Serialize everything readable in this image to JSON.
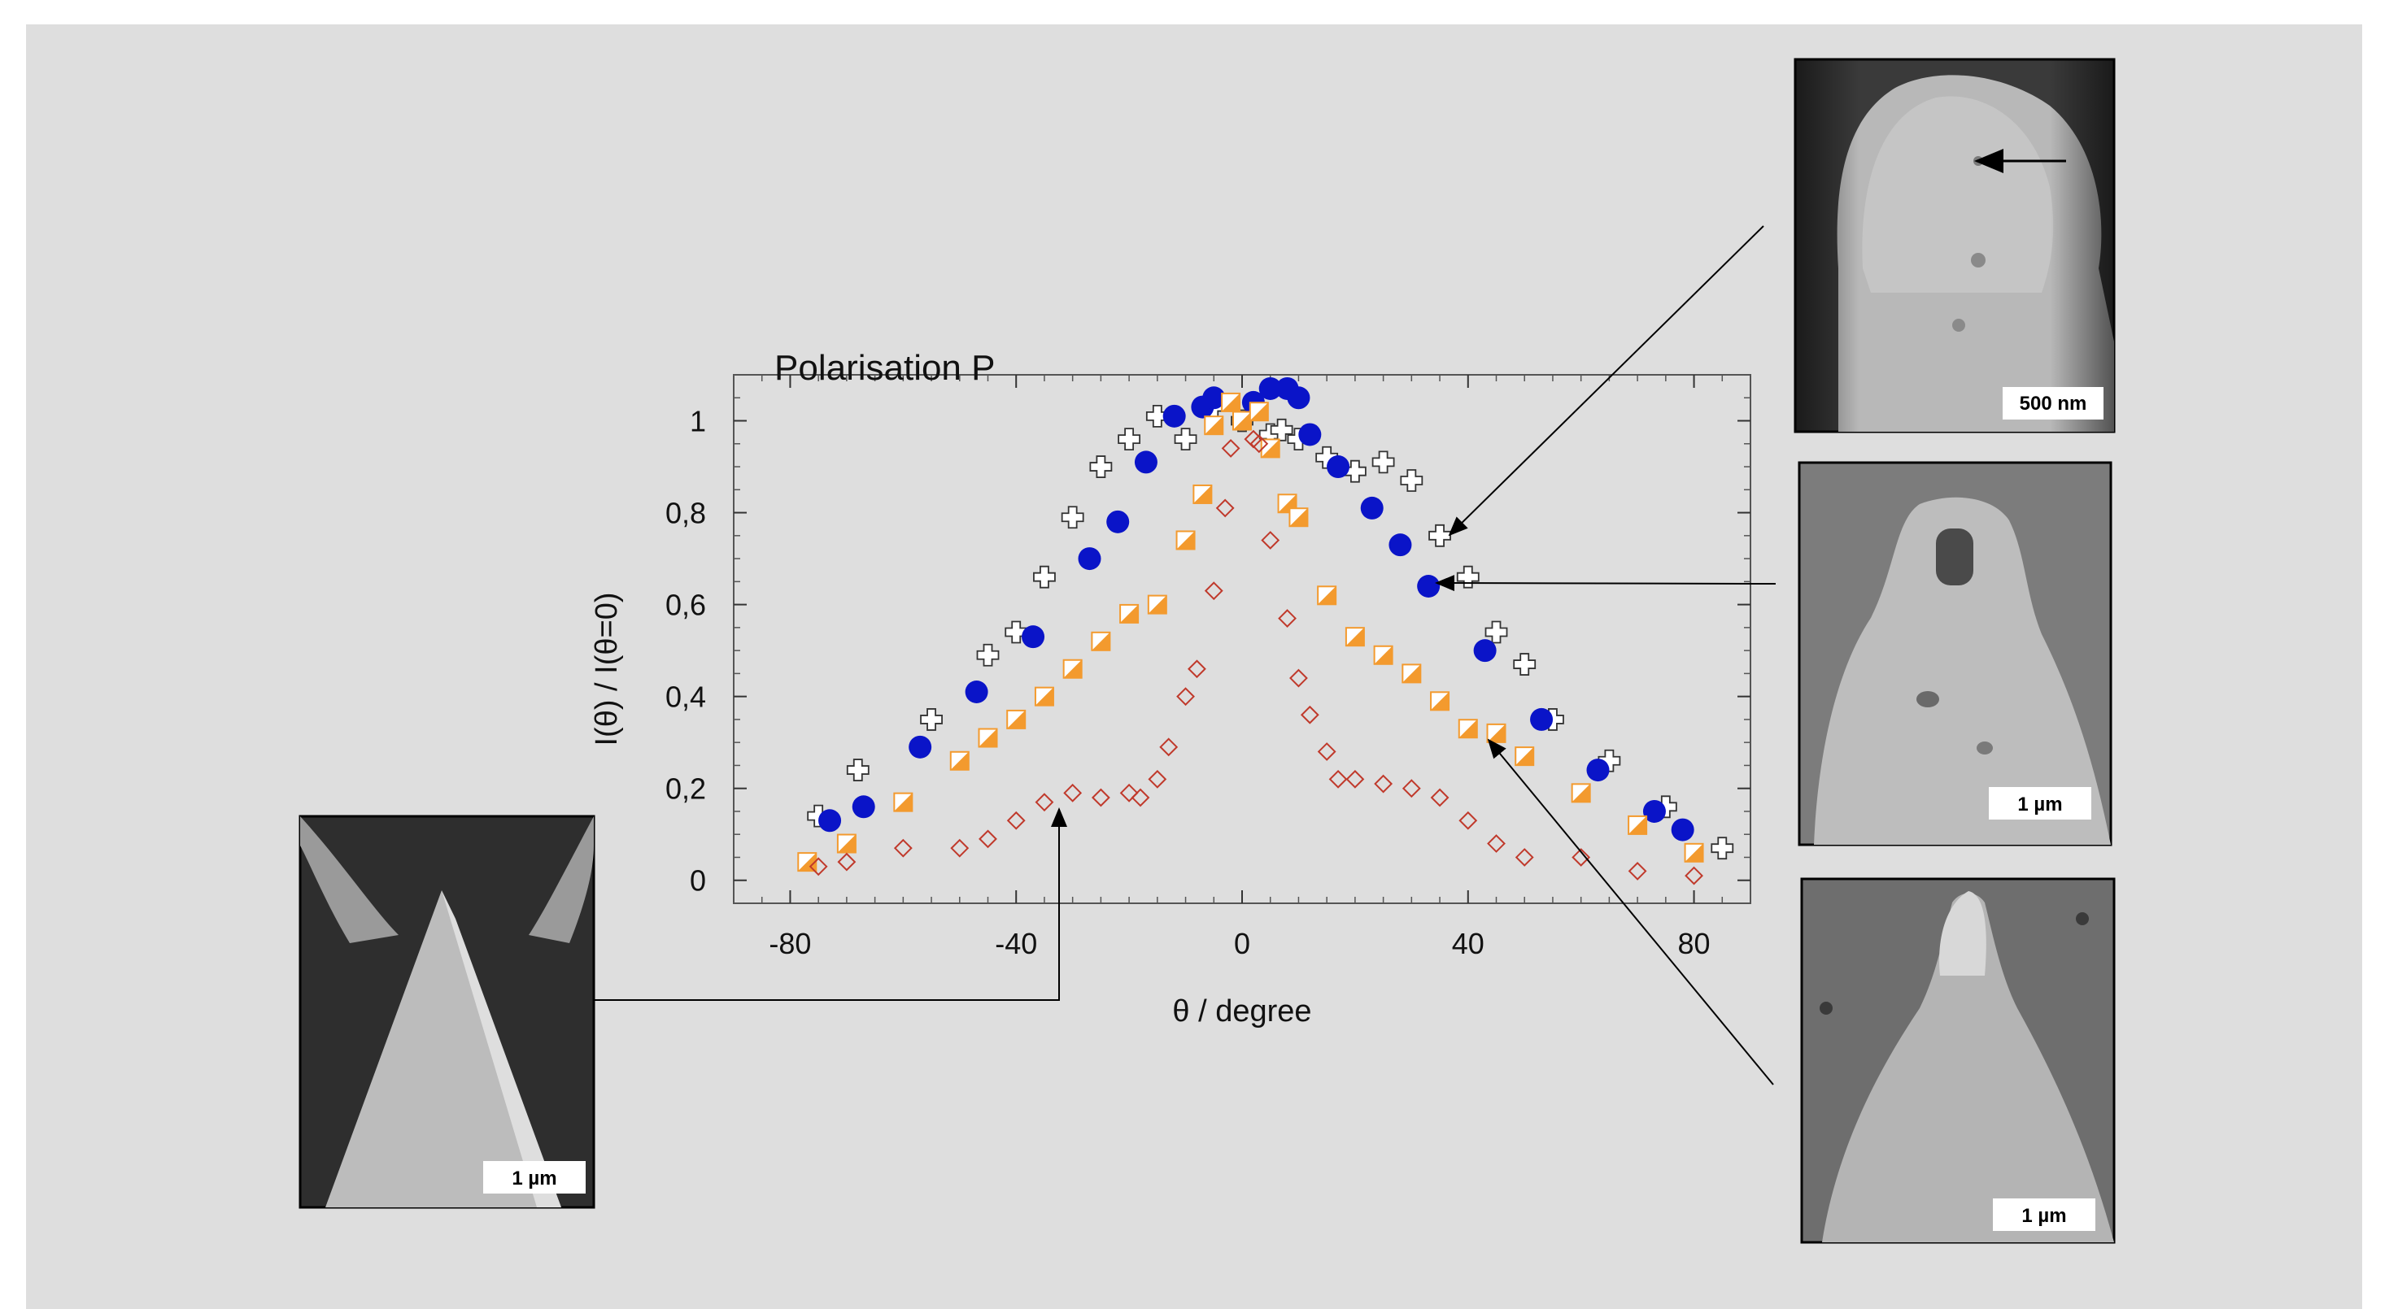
{
  "chart_data": {
    "type": "scatter",
    "title": "Polarisation P",
    "xlabel": "θ / degree",
    "ylabel": "I(θ) / I(θ=0)",
    "xlim": [
      -90,
      90
    ],
    "ylim": [
      -0.05,
      1.1
    ],
    "x_ticks": [
      -80,
      -40,
      0,
      40,
      80
    ],
    "x_tick_labels": [
      "-80",
      "-40",
      "0",
      "40",
      "80"
    ],
    "y_ticks": [
      0,
      0.2,
      0.4,
      0.6,
      0.8,
      1
    ],
    "y_tick_labels": [
      "0",
      "0,2",
      "0,4",
      "0,6",
      "0,8",
      "1"
    ],
    "grid": false,
    "legend": "none",
    "series": [
      {
        "marker": "plus-open",
        "color": "#ffffff",
        "points": [
          [
            -75,
            0.14
          ],
          [
            -68,
            0.24
          ],
          [
            -55,
            0.35
          ],
          [
            -45,
            0.49
          ],
          [
            -40,
            0.54
          ],
          [
            -35,
            0.66
          ],
          [
            -30,
            0.79
          ],
          [
            -25,
            0.9
          ],
          [
            -20,
            0.96
          ],
          [
            -15,
            1.01
          ],
          [
            -10,
            0.96
          ],
          [
            -5,
            1.03
          ],
          [
            0,
            1.0
          ],
          [
            5,
            0.97
          ],
          [
            7,
            0.98
          ],
          [
            10,
            0.96
          ],
          [
            15,
            0.92
          ],
          [
            20,
            0.89
          ],
          [
            25,
            0.91
          ],
          [
            30,
            0.87
          ],
          [
            35,
            0.75
          ],
          [
            40,
            0.66
          ],
          [
            45,
            0.54
          ],
          [
            50,
            0.47
          ],
          [
            55,
            0.35
          ],
          [
            65,
            0.26
          ],
          [
            75,
            0.16
          ],
          [
            85,
            0.07
          ]
        ]
      },
      {
        "marker": "circle-filled",
        "color": "#0a14c8",
        "points": [
          [
            -73,
            0.13
          ],
          [
            -67,
            0.16
          ],
          [
            -57,
            0.29
          ],
          [
            -47,
            0.41
          ],
          [
            -37,
            0.53
          ],
          [
            -27,
            0.7
          ],
          [
            -22,
            0.78
          ],
          [
            -17,
            0.91
          ],
          [
            -12,
            1.01
          ],
          [
            -7,
            1.03
          ],
          [
            -5,
            1.05
          ],
          [
            2,
            1.04
          ],
          [
            5,
            1.07
          ],
          [
            8,
            1.07
          ],
          [
            10,
            1.05
          ],
          [
            12,
            0.97
          ],
          [
            17,
            0.9
          ],
          [
            23,
            0.81
          ],
          [
            28,
            0.73
          ],
          [
            33,
            0.64
          ],
          [
            43,
            0.5
          ],
          [
            53,
            0.35
          ],
          [
            63,
            0.24
          ],
          [
            73,
            0.15
          ],
          [
            78,
            0.11
          ]
        ]
      },
      {
        "marker": "square-half",
        "color": "#f39a2e",
        "points": [
          [
            -77,
            0.04
          ],
          [
            -70,
            0.08
          ],
          [
            -60,
            0.17
          ],
          [
            -50,
            0.26
          ],
          [
            -45,
            0.31
          ],
          [
            -40,
            0.35
          ],
          [
            -35,
            0.4
          ],
          [
            -30,
            0.46
          ],
          [
            -25,
            0.52
          ],
          [
            -20,
            0.58
          ],
          [
            -15,
            0.6
          ],
          [
            -10,
            0.74
          ],
          [
            -7,
            0.84
          ],
          [
            -5,
            0.99
          ],
          [
            -2,
            1.04
          ],
          [
            0,
            1.0
          ],
          [
            3,
            1.02
          ],
          [
            5,
            0.94
          ],
          [
            8,
            0.82
          ],
          [
            10,
            0.79
          ],
          [
            15,
            0.62
          ],
          [
            20,
            0.53
          ],
          [
            25,
            0.49
          ],
          [
            30,
            0.45
          ],
          [
            35,
            0.39
          ],
          [
            40,
            0.33
          ],
          [
            45,
            0.32
          ],
          [
            50,
            0.27
          ],
          [
            60,
            0.19
          ],
          [
            70,
            0.12
          ],
          [
            80,
            0.06
          ]
        ]
      },
      {
        "marker": "diamond-open",
        "color": "#c0392b",
        "points": [
          [
            -75,
            0.03
          ],
          [
            -70,
            0.04
          ],
          [
            -60,
            0.07
          ],
          [
            -50,
            0.07
          ],
          [
            -45,
            0.09
          ],
          [
            -40,
            0.13
          ],
          [
            -35,
            0.17
          ],
          [
            -30,
            0.19
          ],
          [
            -25,
            0.18
          ],
          [
            -20,
            0.19
          ],
          [
            -18,
            0.18
          ],
          [
            -15,
            0.22
          ],
          [
            -13,
            0.29
          ],
          [
            -10,
            0.4
          ],
          [
            -8,
            0.46
          ],
          [
            -5,
            0.63
          ],
          [
            -3,
            0.81
          ],
          [
            -2,
            0.94
          ],
          [
            2,
            0.96
          ],
          [
            3,
            0.95
          ],
          [
            5,
            0.74
          ],
          [
            8,
            0.57
          ],
          [
            10,
            0.44
          ],
          [
            12,
            0.36
          ],
          [
            15,
            0.28
          ],
          [
            17,
            0.22
          ],
          [
            20,
            0.22
          ],
          [
            25,
            0.21
          ],
          [
            30,
            0.2
          ],
          [
            35,
            0.18
          ],
          [
            40,
            0.13
          ],
          [
            45,
            0.08
          ],
          [
            50,
            0.05
          ],
          [
            60,
            0.05
          ],
          [
            70,
            0.02
          ],
          [
            80,
            0.01
          ]
        ]
      }
    ]
  },
  "micrographs": {
    "top_right_scale": "500 nm",
    "middle_right_scale": "1 µm",
    "bottom_right_scale": "1 µm",
    "left_scale": "1 µm"
  }
}
